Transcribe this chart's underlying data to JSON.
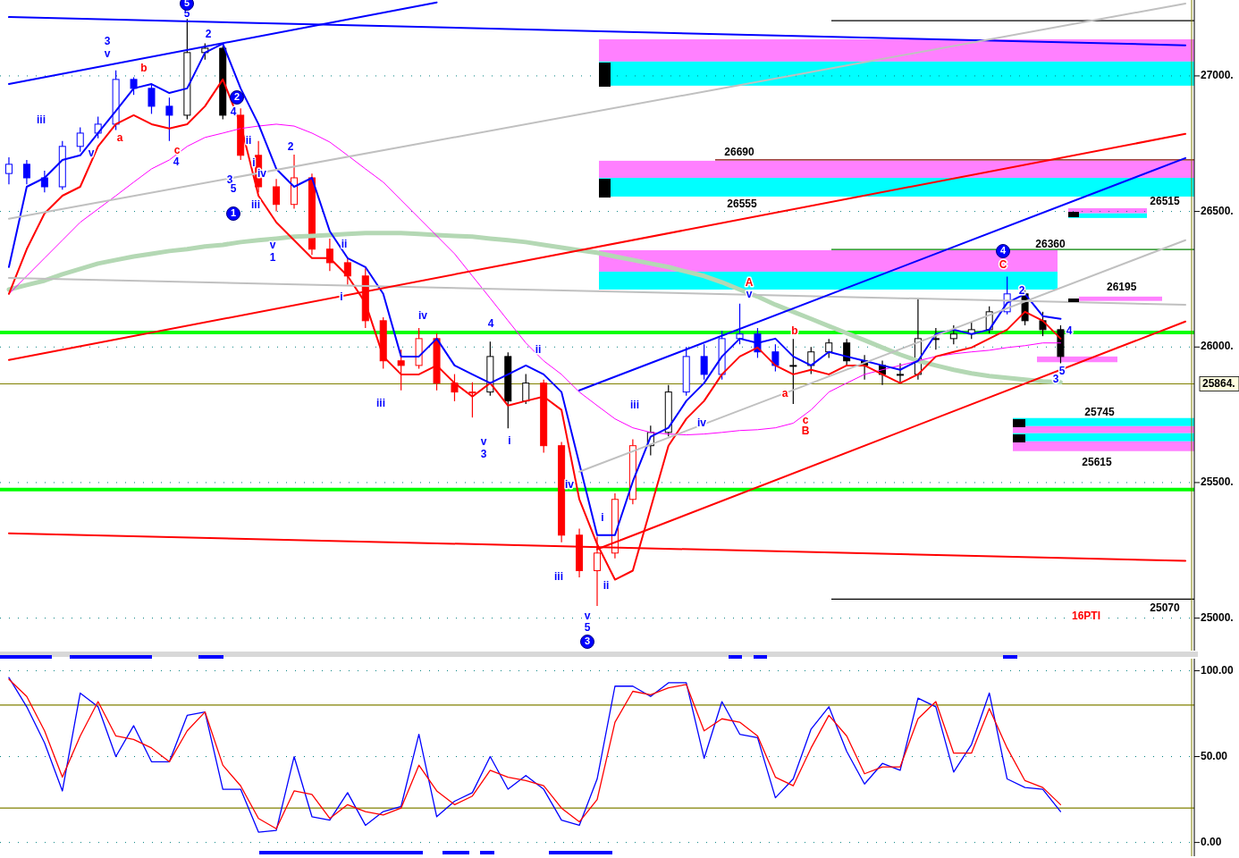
{
  "chart_data": [
    {
      "type": "candlestick",
      "categories": [
        null,
        null,
        null,
        null,
        null,
        null,
        null,
        null,
        null,
        null,
        null,
        null,
        null,
        null,
        null,
        null,
        null,
        null,
        null,
        null,
        null,
        null,
        null,
        null,
        null,
        null,
        null,
        null,
        null,
        null,
        null,
        null,
        null,
        null,
        null,
        null,
        null,
        null,
        null,
        null,
        null,
        null,
        null,
        null,
        null,
        null,
        null,
        null,
        null,
        null,
        null,
        null,
        null,
        null,
        null,
        null,
        null,
        null,
        null,
        null,
        null,
        null,
        null,
        null,
        null,
        null,
        null
      ],
      "ohlc": [
        [
          26640,
          26700,
          26600,
          26674
        ],
        [
          26674,
          26690,
          26600,
          26624
        ],
        [
          26624,
          26650,
          26570,
          26591
        ],
        [
          26591,
          26760,
          26580,
          26740
        ],
        [
          26740,
          26810,
          26720,
          26789
        ],
        [
          26789,
          26850,
          26770,
          26822
        ],
        [
          26822,
          27020,
          26800,
          26987
        ],
        [
          26987,
          26995,
          26930,
          26954
        ],
        [
          26954,
          26970,
          26860,
          26888
        ],
        [
          26888,
          26920,
          26760,
          26855
        ],
        [
          26855,
          27210,
          26840,
          27086
        ],
        [
          27086,
          27120,
          27060,
          27102
        ],
        [
          27102,
          27110,
          26840,
          26855
        ],
        [
          26855,
          26880,
          26690,
          26707
        ],
        [
          26707,
          26760,
          26570,
          26591
        ],
        [
          26591,
          26620,
          26500,
          26526
        ],
        [
          26526,
          26710,
          26510,
          26624
        ],
        [
          26624,
          26640,
          26340,
          26361
        ],
        [
          26361,
          26400,
          26280,
          26311
        ],
        [
          26311,
          26330,
          26230,
          26262
        ],
        [
          26262,
          26290,
          26070,
          26097
        ],
        [
          26097,
          26110,
          25920,
          25949
        ],
        [
          25949,
          25990,
          25840,
          25932
        ],
        [
          25932,
          26070,
          25920,
          26031
        ],
        [
          26031,
          26050,
          25840,
          25867
        ],
        [
          25867,
          25900,
          25800,
          25834
        ],
        [
          25834,
          25870,
          25740,
          25834
        ],
        [
          25834,
          26020,
          25820,
          25965
        ],
        [
          25965,
          25980,
          25700,
          25801
        ],
        [
          25801,
          25900,
          25790,
          25867
        ],
        [
          25867,
          25880,
          25610,
          25636
        ],
        [
          25636,
          25650,
          25280,
          25306
        ],
        [
          25306,
          25330,
          25150,
          25175
        ],
        [
          25175,
          25300,
          25045,
          25240
        ],
        [
          25240,
          25460,
          25220,
          25438
        ],
        [
          25438,
          25660,
          25420,
          25636
        ],
        [
          25636,
          25710,
          25600,
          25685
        ],
        [
          25685,
          25860,
          25670,
          25834
        ],
        [
          25834,
          26000,
          25820,
          25965
        ],
        [
          25965,
          26010,
          25880,
          25899
        ],
        [
          25899,
          26060,
          25880,
          26031
        ],
        [
          26031,
          26160,
          26010,
          26048
        ],
        [
          26048,
          26070,
          25960,
          25982
        ],
        [
          25982,
          26010,
          25910,
          25932
        ],
        [
          25932,
          26030,
          25790,
          25932
        ],
        [
          25932,
          26000,
          25900,
          25982
        ],
        [
          25982,
          26030,
          25960,
          26015
        ],
        [
          26015,
          26030,
          25930,
          25949
        ],
        [
          25949,
          25970,
          25880,
          25932
        ],
        [
          25932,
          25950,
          25860,
          25899
        ],
        [
          25899,
          25940,
          25870,
          25899
        ],
        [
          25899,
          26180,
          25880,
          26031
        ],
        [
          26031,
          26070,
          25990,
          26031
        ],
        [
          26031,
          26080,
          26010,
          26048
        ],
        [
          26048,
          26090,
          26030,
          26064
        ],
        [
          26064,
          26150,
          26050,
          26130
        ],
        [
          26130,
          26260,
          26120,
          26196
        ],
        [
          26196,
          26210,
          26080,
          26097
        ],
        [
          26097,
          26130,
          26040,
          26064
        ],
        [
          26064,
          26080,
          25940,
          25965
        ],
        null,
        null,
        null,
        null,
        null,
        null,
        null
      ],
      "colors": [
        "#0000ff",
        "#0000ff",
        "#0000ff",
        "#0000ff",
        "#0000ff",
        "#0000ff",
        "#0000ff",
        "#0000ff",
        "#0000ff",
        "#0000ff",
        "#000000",
        "#000000",
        "#000000",
        "#ff0000",
        "#ff0000",
        "#ff0000",
        "#ff0000",
        "#ff0000",
        "#ff0000",
        "#ff0000",
        "#ff0000",
        "#ff0000",
        "#ff0000",
        "#ff0000",
        "#ff0000",
        "#ff0000",
        "#ff0000",
        "#000000",
        "#000000",
        "#000000",
        "#ff0000",
        "#ff0000",
        "#ff0000",
        "#ff0000",
        "#ff0000",
        "#ff0000",
        "#000000",
        "#000000",
        "#0000ff",
        "#0000ff",
        "#0000ff",
        "#0000ff",
        "#0000ff",
        "#0000ff",
        "#000000",
        "#000000",
        "#000000",
        "#000000",
        "#000000",
        "#000000",
        "#000000",
        "#000000",
        "#000000",
        "#000000",
        "#000000",
        "#000000",
        "#0000ff",
        "#000000",
        "#000000",
        "#000000",
        null,
        null,
        null,
        null,
        null,
        null,
        null
      ],
      "series": [
        {
          "type": "line",
          "color": "#b4d8b4",
          "values": [
            26212,
            26229,
            26245,
            26268,
            26288,
            26308,
            26321,
            26334,
            26344,
            26354,
            26361,
            26371,
            26377,
            26387,
            26394,
            26400,
            26407,
            26410,
            26413,
            26417,
            26420,
            26420,
            26420,
            26417,
            26413,
            26410,
            26407,
            26400,
            26394,
            26387,
            26377,
            26367,
            26357,
            26348,
            26334,
            26321,
            26308,
            26295,
            26278,
            26262,
            26239,
            26212,
            26186,
            26156,
            26130,
            26104,
            26077,
            26051,
            26025,
            25998,
            25972,
            25949,
            25932,
            25916,
            25903,
            25893,
            25886,
            25880,
            25873,
            25870,
            null,
            null,
            null,
            null,
            null,
            null,
            null
          ]
        },
        {
          "type": "line",
          "color": "#ff00ff",
          "values": [
            26196,
            26262,
            26328,
            26394,
            26460,
            26509,
            26558,
            26608,
            26657,
            26690,
            26740,
            26773,
            26789,
            26806,
            26815,
            26822,
            26815,
            26789,
            26756,
            26707,
            26657,
            26608,
            26542,
            26476,
            26410,
            26344,
            26262,
            26180,
            26097,
            26015,
            25949,
            25899,
            25834,
            25784,
            25735,
            25702,
            25685,
            25679,
            25676,
            25679,
            25685,
            25692,
            25695,
            25702,
            25719,
            25768,
            25834,
            25867,
            25899,
            25916,
            25932,
            25949,
            25965,
            25975,
            25982,
            25988,
            25998,
            26005,
            26015,
            26015,
            null,
            null,
            null,
            null,
            null,
            null,
            null
          ]
        },
        {
          "type": "line",
          "color": "#ff0000",
          "values": [
            26196,
            26361,
            26493,
            26558,
            26591,
            26740,
            26822,
            26855,
            26822,
            26806,
            26822,
            26888,
            26987,
            26822,
            26558,
            26460,
            26394,
            26328,
            26328,
            26262,
            26163,
            25965,
            25899,
            25899,
            25932,
            25867,
            25817,
            25867,
            25784,
            25801,
            25817,
            25768,
            25438,
            25273,
            25142,
            25175,
            25405,
            25636,
            25735,
            25801,
            25899,
            25965,
            25998,
            25932,
            25899,
            25916,
            25899,
            25932,
            25932,
            25899,
            25867,
            25899,
            25965,
            25982,
            25998,
            26031,
            26064,
            26130,
            26097,
            26031,
            null,
            null,
            null,
            null,
            null,
            null,
            null
          ]
        },
        {
          "type": "line",
          "color": "#0000ff",
          "values": [
            26295,
            26591,
            26624,
            26690,
            26707,
            26789,
            26871,
            26954,
            26970,
            26937,
            26954,
            27086,
            27119,
            26954,
            26822,
            26657,
            26591,
            26624,
            26427,
            26328,
            26295,
            26196,
            25965,
            25965,
            26031,
            25932,
            25899,
            25867,
            25899,
            25932,
            25899,
            25834,
            25570,
            25306,
            25306,
            25504,
            25669,
            25702,
            25801,
            25867,
            25965,
            26031,
            26015,
            26031,
            25965,
            25932,
            25982,
            25965,
            25949,
            25932,
            25916,
            25949,
            26048,
            26064,
            26048,
            26064,
            26163,
            26196,
            26114,
            26104,
            null,
            null,
            null,
            null,
            null,
            null,
            null
          ]
        },
        {
          "type": "line",
          "color": "#0000ff",
          "values": [
            26970,
            null,
            null,
            null,
            null,
            null,
            null,
            null,
            null,
            null,
            null,
            null,
            null,
            null,
            null,
            null,
            null,
            null,
            null,
            null,
            null,
            null,
            null,
            null,
            27271,
            null,
            null,
            null,
            null,
            null,
            null,
            null,
            null,
            null,
            null,
            null,
            null,
            null,
            null,
            null,
            null,
            null,
            null,
            null,
            null,
            null,
            null,
            null,
            null,
            null,
            null,
            null,
            null,
            null,
            null,
            null,
            null,
            null,
            null,
            null,
            null,
            null,
            null,
            null,
            null,
            null,
            null
          ]
        },
        {
          "type": "line",
          "color": "#0000ff",
          "values": [
            27217,
            null,
            null,
            null,
            null,
            null,
            null,
            null,
            null,
            null,
            null,
            null,
            null,
            null,
            null,
            null,
            null,
            null,
            null,
            null,
            null,
            null,
            null,
            null,
            null,
            null,
            null,
            null,
            null,
            null,
            null,
            null,
            null,
            null,
            null,
            null,
            null,
            null,
            null,
            null,
            null,
            null,
            null,
            null,
            null,
            null,
            null,
            null,
            null,
            null,
            null,
            null,
            null,
            null,
            null,
            null,
            null,
            null,
            null,
            null,
            null,
            null,
            null,
            null,
            null,
            null,
            27113
          ]
        },
        {
          "type": "line",
          "color": "#c0c0c0",
          "values": [
            26473,
            null,
            null,
            null,
            null,
            null,
            null,
            null,
            null,
            null,
            null,
            null,
            null,
            null,
            null,
            null,
            null,
            null,
            null,
            null,
            null,
            null,
            null,
            null,
            null,
            null,
            null,
            null,
            null,
            null,
            null,
            null,
            null,
            null,
            null,
            null,
            null,
            null,
            null,
            null,
            null,
            null,
            null,
            null,
            null,
            null,
            null,
            null,
            null,
            null,
            null,
            null,
            null,
            null,
            null,
            null,
            null,
            null,
            null,
            null,
            null,
            null,
            null,
            null,
            null,
            null,
            27267
          ]
        },
        {
          "type": "line",
          "color": "#c0c0c0",
          "values": [
            null,
            null,
            null,
            null,
            null,
            null,
            null,
            null,
            null,
            null,
            null,
            null,
            null,
            null,
            null,
            null,
            null,
            null,
            null,
            null,
            null,
            null,
            null,
            null,
            null,
            null,
            null,
            null,
            null,
            null,
            null,
            null,
            25540,
            null,
            null,
            null,
            null,
            null,
            null,
            null,
            null,
            null,
            null,
            null,
            null,
            null,
            null,
            null,
            null,
            null,
            null,
            null,
            null,
            null,
            null,
            null,
            null,
            null,
            null,
            null,
            null,
            null,
            null,
            null,
            null,
            null,
            26394
          ]
        },
        {
          "type": "line",
          "color": "#c0c0c0",
          "values": [
            26255,
            null,
            null,
            null,
            null,
            null,
            null,
            null,
            null,
            null,
            null,
            null,
            null,
            null,
            null,
            null,
            null,
            null,
            null,
            null,
            null,
            null,
            null,
            null,
            null,
            null,
            null,
            null,
            null,
            null,
            null,
            null,
            null,
            null,
            null,
            null,
            null,
            null,
            null,
            null,
            null,
            null,
            null,
            null,
            null,
            null,
            null,
            null,
            null,
            null,
            null,
            null,
            null,
            null,
            null,
            null,
            null,
            null,
            null,
            null,
            null,
            null,
            null,
            null,
            null,
            null,
            26156
          ]
        },
        {
          "type": "line",
          "color": "#ff0000",
          "values": [
            25952,
            null,
            null,
            null,
            null,
            null,
            null,
            null,
            null,
            null,
            null,
            null,
            null,
            null,
            null,
            null,
            null,
            null,
            null,
            null,
            null,
            null,
            null,
            null,
            null,
            null,
            null,
            null,
            null,
            null,
            null,
            null,
            null,
            null,
            null,
            null,
            null,
            null,
            null,
            null,
            null,
            null,
            null,
            null,
            null,
            null,
            null,
            null,
            null,
            null,
            null,
            null,
            null,
            null,
            null,
            null,
            null,
            null,
            null,
            null,
            null,
            null,
            null,
            null,
            null,
            null,
            26786
          ]
        },
        {
          "type": "line",
          "color": "#ff0000",
          "values": [
            null,
            null,
            null,
            null,
            null,
            null,
            null,
            null,
            null,
            null,
            null,
            null,
            null,
            null,
            null,
            null,
            null,
            null,
            null,
            null,
            null,
            null,
            null,
            null,
            null,
            null,
            null,
            null,
            null,
            null,
            null,
            null,
            null,
            25254,
            null,
            null,
            null,
            null,
            null,
            null,
            null,
            null,
            null,
            null,
            null,
            null,
            null,
            null,
            null,
            null,
            null,
            null,
            null,
            null,
            null,
            null,
            null,
            null,
            null,
            null,
            null,
            null,
            null,
            null,
            null,
            null,
            26094
          ]
        },
        {
          "type": "line",
          "color": "#ff0000",
          "values": [
            25313,
            null,
            null,
            null,
            null,
            null,
            null,
            null,
            null,
            null,
            null,
            null,
            null,
            null,
            null,
            null,
            null,
            null,
            null,
            null,
            null,
            null,
            null,
            null,
            null,
            null,
            null,
            null,
            null,
            null,
            null,
            null,
            null,
            null,
            null,
            null,
            null,
            null,
            null,
            null,
            null,
            null,
            null,
            null,
            null,
            null,
            null,
            null,
            null,
            null,
            null,
            null,
            null,
            null,
            null,
            null,
            null,
            null,
            null,
            null,
            null,
            null,
            null,
            null,
            null,
            null,
            25211
          ]
        },
        {
          "type": "line",
          "color": "#0000ff",
          "values": [
            null,
            null,
            null,
            null,
            null,
            null,
            null,
            null,
            null,
            null,
            null,
            null,
            null,
            null,
            null,
            null,
            null,
            null,
            null,
            null,
            null,
            null,
            null,
            null,
            null,
            null,
            null,
            null,
            null,
            null,
            null,
            null,
            25840,
            null,
            null,
            null,
            null,
            null,
            null,
            null,
            null,
            null,
            null,
            null,
            null,
            null,
            null,
            null,
            null,
            null,
            null,
            null,
            null,
            null,
            null,
            null,
            null,
            null,
            null,
            null,
            null,
            null,
            null,
            null,
            null,
            null,
            26697
          ]
        }
      ],
      "ylim": [
        24880,
        27280
      ],
      "yticks": [
        {
          "value": 25000,
          "label": "25000."
        },
        {
          "value": 25500,
          "label": "25500."
        },
        {
          "value": 26000,
          "label": "26000."
        },
        {
          "value": 26500,
          "label": "26500."
        },
        {
          "value": 27000,
          "label": "27000."
        }
      ],
      "ref_lines": [
        {
          "axis": "y",
          "value": 26054,
          "color": "#00ff00"
        },
        {
          "axis": "y",
          "value": 25474,
          "color": "#00ff00"
        },
        {
          "axis": "y",
          "value": 25864,
          "label": "25864.",
          "color": "#808000"
        },
        {
          "axis": "y",
          "value": 27204,
          "color": "#000000"
        },
        {
          "axis": "y",
          "value": 26690,
          "label": "26690",
          "color": "#800000"
        },
        {
          "axis": "y",
          "value": 26360,
          "label": "26360",
          "color": "#008000"
        },
        {
          "axis": "y",
          "value": 25070,
          "label": "25070",
          "color": "#000000"
        }
      ],
      "bands": [
        {
          "axis": "y",
          "from": 27053,
          "to": 27135,
          "color": "#ff80ff"
        },
        {
          "axis": "y",
          "from": 26964,
          "to": 27053,
          "color": "#00ffff"
        },
        {
          "axis": "y",
          "from": 26624,
          "to": 26687,
          "color": "#ff80ff"
        },
        {
          "axis": "y",
          "from": 26555,
          "to": 26624,
          "label": "26555",
          "color": "#00ffff"
        },
        {
          "axis": "y",
          "from": 26278,
          "to": 26357,
          "color": "#ff80ff"
        },
        {
          "axis": "y",
          "from": 26212,
          "to": 26278,
          "color": "#00ffff"
        },
        {
          "axis": "y",
          "from": 26493,
          "to": 26512,
          "color": "#ff80ff"
        },
        {
          "axis": "y",
          "from": 26476,
          "to": 26493,
          "label": "26515",
          "color": "#00ffff"
        },
        {
          "axis": "y",
          "from": 26170,
          "to": 26186,
          "label": "26195",
          "color": "#ff80ff"
        },
        {
          "axis": "y",
          "from": 25944,
          "to": 25965,
          "color": "#ff80ff"
        },
        {
          "axis": "y",
          "from": 25708,
          "to": 25738,
          "label": "25745",
          "color": "#00ffff"
        },
        {
          "axis": "y",
          "from": 25682,
          "to": 25708,
          "color": "#ff80ff"
        },
        {
          "axis": "y",
          "from": 25652,
          "to": 25682,
          "color": "#00ffff"
        },
        {
          "axis": "y",
          "from": 25616,
          "to": 25652,
          "label": "25615",
          "color": "#ff80ff"
        }
      ],
      "annotations": [
        "3",
        "v",
        "iii",
        "v",
        "b",
        "a",
        "c",
        "4",
        "5",
        "2",
        "4",
        "3",
        "5",
        "ii",
        "i",
        "iv",
        "iii",
        "2",
        "v",
        "1",
        "ii",
        "i",
        "iv",
        "iii",
        "4",
        "v",
        "3",
        "i",
        "ii",
        "iv",
        "i",
        "iii",
        "ii",
        "v",
        "5",
        "iii",
        "iv",
        "v",
        "A",
        "b",
        "a",
        "c",
        "B",
        "C",
        "2",
        "4",
        "5",
        "3",
        "5",
        "2",
        "1",
        "3",
        "4",
        "16PTI"
      ],
      "grid": "y",
      "tick_labels": "y"
    },
    {
      "type": "line",
      "categories": [
        null,
        null,
        null,
        null,
        null,
        null,
        null,
        null,
        null,
        null,
        null,
        null,
        null,
        null,
        null,
        null,
        null,
        null,
        null,
        null,
        null,
        null,
        null,
        null,
        null,
        null,
        null,
        null,
        null,
        null,
        null,
        null,
        null,
        null,
        null,
        null,
        null,
        null,
        null,
        null,
        null,
        null,
        null,
        null,
        null,
        null,
        null,
        null,
        null,
        null,
        null,
        null,
        null,
        null,
        null,
        null,
        null,
        null,
        null,
        null,
        null,
        null,
        null,
        null,
        null,
        null,
        null
      ],
      "series": [
        {
          "color": "#0000ff",
          "values": [
            96,
            79,
            58,
            30,
            87,
            79,
            50,
            68,
            47,
            47,
            74,
            76,
            31,
            31,
            6,
            7,
            50,
            15,
            13,
            29,
            10,
            18,
            21,
            63,
            15,
            24,
            29,
            50,
            31,
            39,
            31,
            13,
            10,
            37,
            91,
            91,
            85,
            93,
            93,
            49,
            82,
            63,
            61,
            26,
            37,
            66,
            79,
            53,
            34,
            46,
            42,
            84,
            79,
            41,
            57,
            87,
            37,
            32,
            31,
            18,
            null,
            null,
            null,
            null,
            null,
            null,
            null
          ]
        },
        {
          "color": "#ff0000",
          "values": [
            95,
            85,
            65,
            38,
            62,
            82,
            62,
            60,
            55,
            47,
            65,
            76,
            45,
            33,
            14,
            8,
            30,
            28,
            14,
            22,
            18,
            16,
            20,
            45,
            30,
            22,
            27,
            42,
            38,
            36,
            33,
            20,
            12,
            25,
            70,
            88,
            86,
            90,
            92,
            65,
            72,
            70,
            62,
            38,
            33,
            55,
            74,
            62,
            40,
            44,
            44,
            72,
            82,
            52,
            52,
            78,
            55,
            36,
            32,
            22,
            null,
            null,
            null,
            null,
            null,
            null,
            null
          ]
        }
      ],
      "ylim": [
        -8,
        107
      ],
      "yticks": [
        {
          "value": 0,
          "label": "0.00"
        },
        {
          "value": 50,
          "label": "50.00"
        },
        {
          "value": 100,
          "label": "100.00"
        }
      ],
      "ref_lines": [
        {
          "axis": "y",
          "value": 80,
          "color": "#808000"
        },
        {
          "axis": "y",
          "value": 20,
          "color": "#808000"
        }
      ],
      "grid": "y",
      "tick_labels": "y"
    }
  ]
}
